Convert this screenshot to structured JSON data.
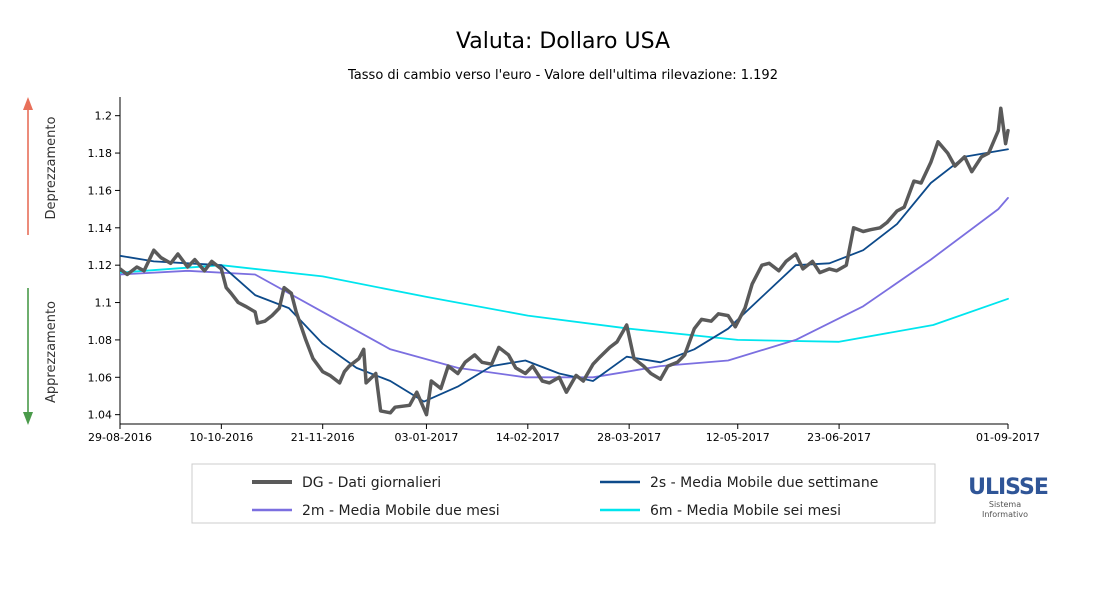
{
  "chart_data": {
    "type": "line",
    "title": "Valuta: Dollaro USA",
    "subtitle": "Tasso di cambio verso l'euro - Valore dell'ultima rilevazione: 1.192",
    "ylim": [
      1.035,
      1.21
    ],
    "yticks": [
      1.04,
      1.06,
      1.08,
      1.1,
      1.12,
      1.14,
      1.16,
      1.18,
      1.2
    ],
    "xlim": [
      "2016-08-29",
      "2017-09-01"
    ],
    "xticks": [
      "29-08-2016",
      "10-10-2016",
      "21-11-2016",
      "03-01-2017",
      "14-02-2017",
      "28-03-2017",
      "12-05-2017",
      "23-06-2017",
      "01-09-2017"
    ],
    "grid": false,
    "legend_position": "bottom",
    "side_labels": {
      "top": "Deprezzamento",
      "bottom": "Apprezzamento",
      "top_color": "#e8705a",
      "bottom_color": "#4a9a4a"
    },
    "series": [
      {
        "name": "DG - Dati giornalieri",
        "color": "#5a5a5a",
        "width": 3.5,
        "points": [
          [
            "2016-08-29",
            1.118
          ],
          [
            "2016-09-01",
            1.115
          ],
          [
            "2016-09-05",
            1.119
          ],
          [
            "2016-09-08",
            1.117
          ],
          [
            "2016-09-12",
            1.128
          ],
          [
            "2016-09-15",
            1.124
          ],
          [
            "2016-09-19",
            1.121
          ],
          [
            "2016-09-22",
            1.126
          ],
          [
            "2016-09-26",
            1.119
          ],
          [
            "2016-09-29",
            1.123
          ],
          [
            "2016-10-03",
            1.117
          ],
          [
            "2016-10-06",
            1.122
          ],
          [
            "2016-10-10",
            1.118
          ],
          [
            "2016-10-12",
            1.108
          ],
          [
            "2016-10-14",
            1.105
          ],
          [
            "2016-10-17",
            1.1
          ],
          [
            "2016-10-20",
            1.098
          ],
          [
            "2016-10-24",
            1.095
          ],
          [
            "2016-10-25",
            1.089
          ],
          [
            "2016-10-28",
            1.09
          ],
          [
            "2016-10-31",
            1.093
          ],
          [
            "2016-11-03",
            1.097
          ],
          [
            "2016-11-05",
            1.108
          ],
          [
            "2016-11-08",
            1.105
          ],
          [
            "2016-11-10",
            1.095
          ],
          [
            "2016-11-14",
            1.08
          ],
          [
            "2016-11-17",
            1.07
          ],
          [
            "2016-11-21",
            1.063
          ],
          [
            "2016-11-24",
            1.061
          ],
          [
            "2016-11-28",
            1.057
          ],
          [
            "2016-11-30",
            1.063
          ],
          [
            "2016-12-02",
            1.066
          ],
          [
            "2016-12-06",
            1.07
          ],
          [
            "2016-12-08",
            1.075
          ],
          [
            "2016-12-09",
            1.057
          ],
          [
            "2016-12-13",
            1.062
          ],
          [
            "2016-12-15",
            1.042
          ],
          [
            "2016-12-19",
            1.041
          ],
          [
            "2016-12-21",
            1.044
          ],
          [
            "2016-12-27",
            1.045
          ],
          [
            "2016-12-30",
            1.052
          ],
          [
            "2017-01-03",
            1.04
          ],
          [
            "2017-01-05",
            1.058
          ],
          [
            "2017-01-09",
            1.054
          ],
          [
            "2017-01-12",
            1.066
          ],
          [
            "2017-01-16",
            1.062
          ],
          [
            "2017-01-19",
            1.068
          ],
          [
            "2017-01-23",
            1.072
          ],
          [
            "2017-01-26",
            1.068
          ],
          [
            "2017-01-30",
            1.067
          ],
          [
            "2017-02-02",
            1.076
          ],
          [
            "2017-02-06",
            1.072
          ],
          [
            "2017-02-09",
            1.065
          ],
          [
            "2017-02-13",
            1.062
          ],
          [
            "2017-02-16",
            1.066
          ],
          [
            "2017-02-20",
            1.058
          ],
          [
            "2017-02-23",
            1.057
          ],
          [
            "2017-02-27",
            1.06
          ],
          [
            "2017-03-02",
            1.052
          ],
          [
            "2017-03-06",
            1.061
          ],
          [
            "2017-03-09",
            1.058
          ],
          [
            "2017-03-13",
            1.067
          ],
          [
            "2017-03-16",
            1.071
          ],
          [
            "2017-03-20",
            1.076
          ],
          [
            "2017-03-23",
            1.079
          ],
          [
            "2017-03-27",
            1.088
          ],
          [
            "2017-03-30",
            1.07
          ],
          [
            "2017-04-03",
            1.066
          ],
          [
            "2017-04-06",
            1.062
          ],
          [
            "2017-04-10",
            1.059
          ],
          [
            "2017-04-13",
            1.066
          ],
          [
            "2017-04-17",
            1.068
          ],
          [
            "2017-04-20",
            1.072
          ],
          [
            "2017-04-24",
            1.086
          ],
          [
            "2017-04-27",
            1.091
          ],
          [
            "2017-05-01",
            1.09
          ],
          [
            "2017-05-04",
            1.094
          ],
          [
            "2017-05-08",
            1.093
          ],
          [
            "2017-05-11",
            1.087
          ],
          [
            "2017-05-15",
            1.097
          ],
          [
            "2017-05-18",
            1.11
          ],
          [
            "2017-05-22",
            1.12
          ],
          [
            "2017-05-25",
            1.121
          ],
          [
            "2017-05-29",
            1.117
          ],
          [
            "2017-06-01",
            1.122
          ],
          [
            "2017-06-05",
            1.126
          ],
          [
            "2017-06-08",
            1.118
          ],
          [
            "2017-06-12",
            1.122
          ],
          [
            "2017-06-15",
            1.116
          ],
          [
            "2017-06-19",
            1.118
          ],
          [
            "2017-06-22",
            1.117
          ],
          [
            "2017-06-26",
            1.12
          ],
          [
            "2017-06-29",
            1.14
          ],
          [
            "2017-07-03",
            1.138
          ],
          [
            "2017-07-06",
            1.139
          ],
          [
            "2017-07-10",
            1.14
          ],
          [
            "2017-07-13",
            1.143
          ],
          [
            "2017-07-17",
            1.149
          ],
          [
            "2017-07-20",
            1.151
          ],
          [
            "2017-07-24",
            1.165
          ],
          [
            "2017-07-27",
            1.164
          ],
          [
            "2017-07-31",
            1.175
          ],
          [
            "2017-08-03",
            1.186
          ],
          [
            "2017-08-07",
            1.18
          ],
          [
            "2017-08-10",
            1.173
          ],
          [
            "2017-08-14",
            1.178
          ],
          [
            "2017-08-17",
            1.17
          ],
          [
            "2017-08-21",
            1.178
          ],
          [
            "2017-08-24",
            1.18
          ],
          [
            "2017-08-28",
            1.192
          ],
          [
            "2017-08-29",
            1.204
          ],
          [
            "2017-08-31",
            1.185
          ],
          [
            "2017-09-01",
            1.192
          ]
        ]
      },
      {
        "name": "2s - Media Mobile due settimane",
        "color": "#0d4a8a",
        "width": 1.8,
        "points": [
          [
            "2016-08-29",
            1.125
          ],
          [
            "2016-09-12",
            1.122
          ],
          [
            "2016-09-26",
            1.121
          ],
          [
            "2016-10-10",
            1.12
          ],
          [
            "2016-10-24",
            1.104
          ],
          [
            "2016-11-07",
            1.097
          ],
          [
            "2016-11-21",
            1.078
          ],
          [
            "2016-12-05",
            1.065
          ],
          [
            "2016-12-19",
            1.058
          ],
          [
            "2017-01-02",
            1.047
          ],
          [
            "2017-01-16",
            1.055
          ],
          [
            "2017-01-30",
            1.066
          ],
          [
            "2017-02-13",
            1.069
          ],
          [
            "2017-02-27",
            1.062
          ],
          [
            "2017-03-13",
            1.058
          ],
          [
            "2017-03-27",
            1.071
          ],
          [
            "2017-04-10",
            1.068
          ],
          [
            "2017-04-24",
            1.075
          ],
          [
            "2017-05-08",
            1.086
          ],
          [
            "2017-05-22",
            1.103
          ],
          [
            "2017-06-05",
            1.12
          ],
          [
            "2017-06-19",
            1.121
          ],
          [
            "2017-07-03",
            1.128
          ],
          [
            "2017-07-17",
            1.142
          ],
          [
            "2017-07-31",
            1.164
          ],
          [
            "2017-08-14",
            1.178
          ],
          [
            "2017-09-01",
            1.182
          ]
        ]
      },
      {
        "name": "2m - Media Mobile due mesi",
        "color": "#7b6fe0",
        "width": 1.8,
        "points": [
          [
            "2016-08-29",
            1.115
          ],
          [
            "2016-09-26",
            1.117
          ],
          [
            "2016-10-24",
            1.115
          ],
          [
            "2016-11-21",
            1.095
          ],
          [
            "2016-12-19",
            1.075
          ],
          [
            "2017-01-16",
            1.065
          ],
          [
            "2017-02-13",
            1.06
          ],
          [
            "2017-03-13",
            1.06
          ],
          [
            "2017-04-10",
            1.066
          ],
          [
            "2017-05-08",
            1.069
          ],
          [
            "2017-06-05",
            1.08
          ],
          [
            "2017-07-03",
            1.098
          ],
          [
            "2017-07-31",
            1.123
          ],
          [
            "2017-08-28",
            1.15
          ],
          [
            "2017-09-01",
            1.156
          ]
        ]
      },
      {
        "name": "6m - Media Mobile sei mesi",
        "color": "#00e5ee",
        "width": 1.8,
        "points": [
          [
            "2016-08-29",
            1.116
          ],
          [
            "2016-10-10",
            1.12
          ],
          [
            "2016-11-21",
            1.114
          ],
          [
            "2017-01-03",
            1.103
          ],
          [
            "2017-02-14",
            1.093
          ],
          [
            "2017-03-28",
            1.086
          ],
          [
            "2017-05-12",
            1.08
          ],
          [
            "2017-06-23",
            1.079
          ],
          [
            "2017-08-01",
            1.088
          ],
          [
            "2017-09-01",
            1.102
          ]
        ]
      }
    ]
  },
  "logo": {
    "name": "ULISSE",
    "line1": "Sistema",
    "line2": "Informativo"
  }
}
